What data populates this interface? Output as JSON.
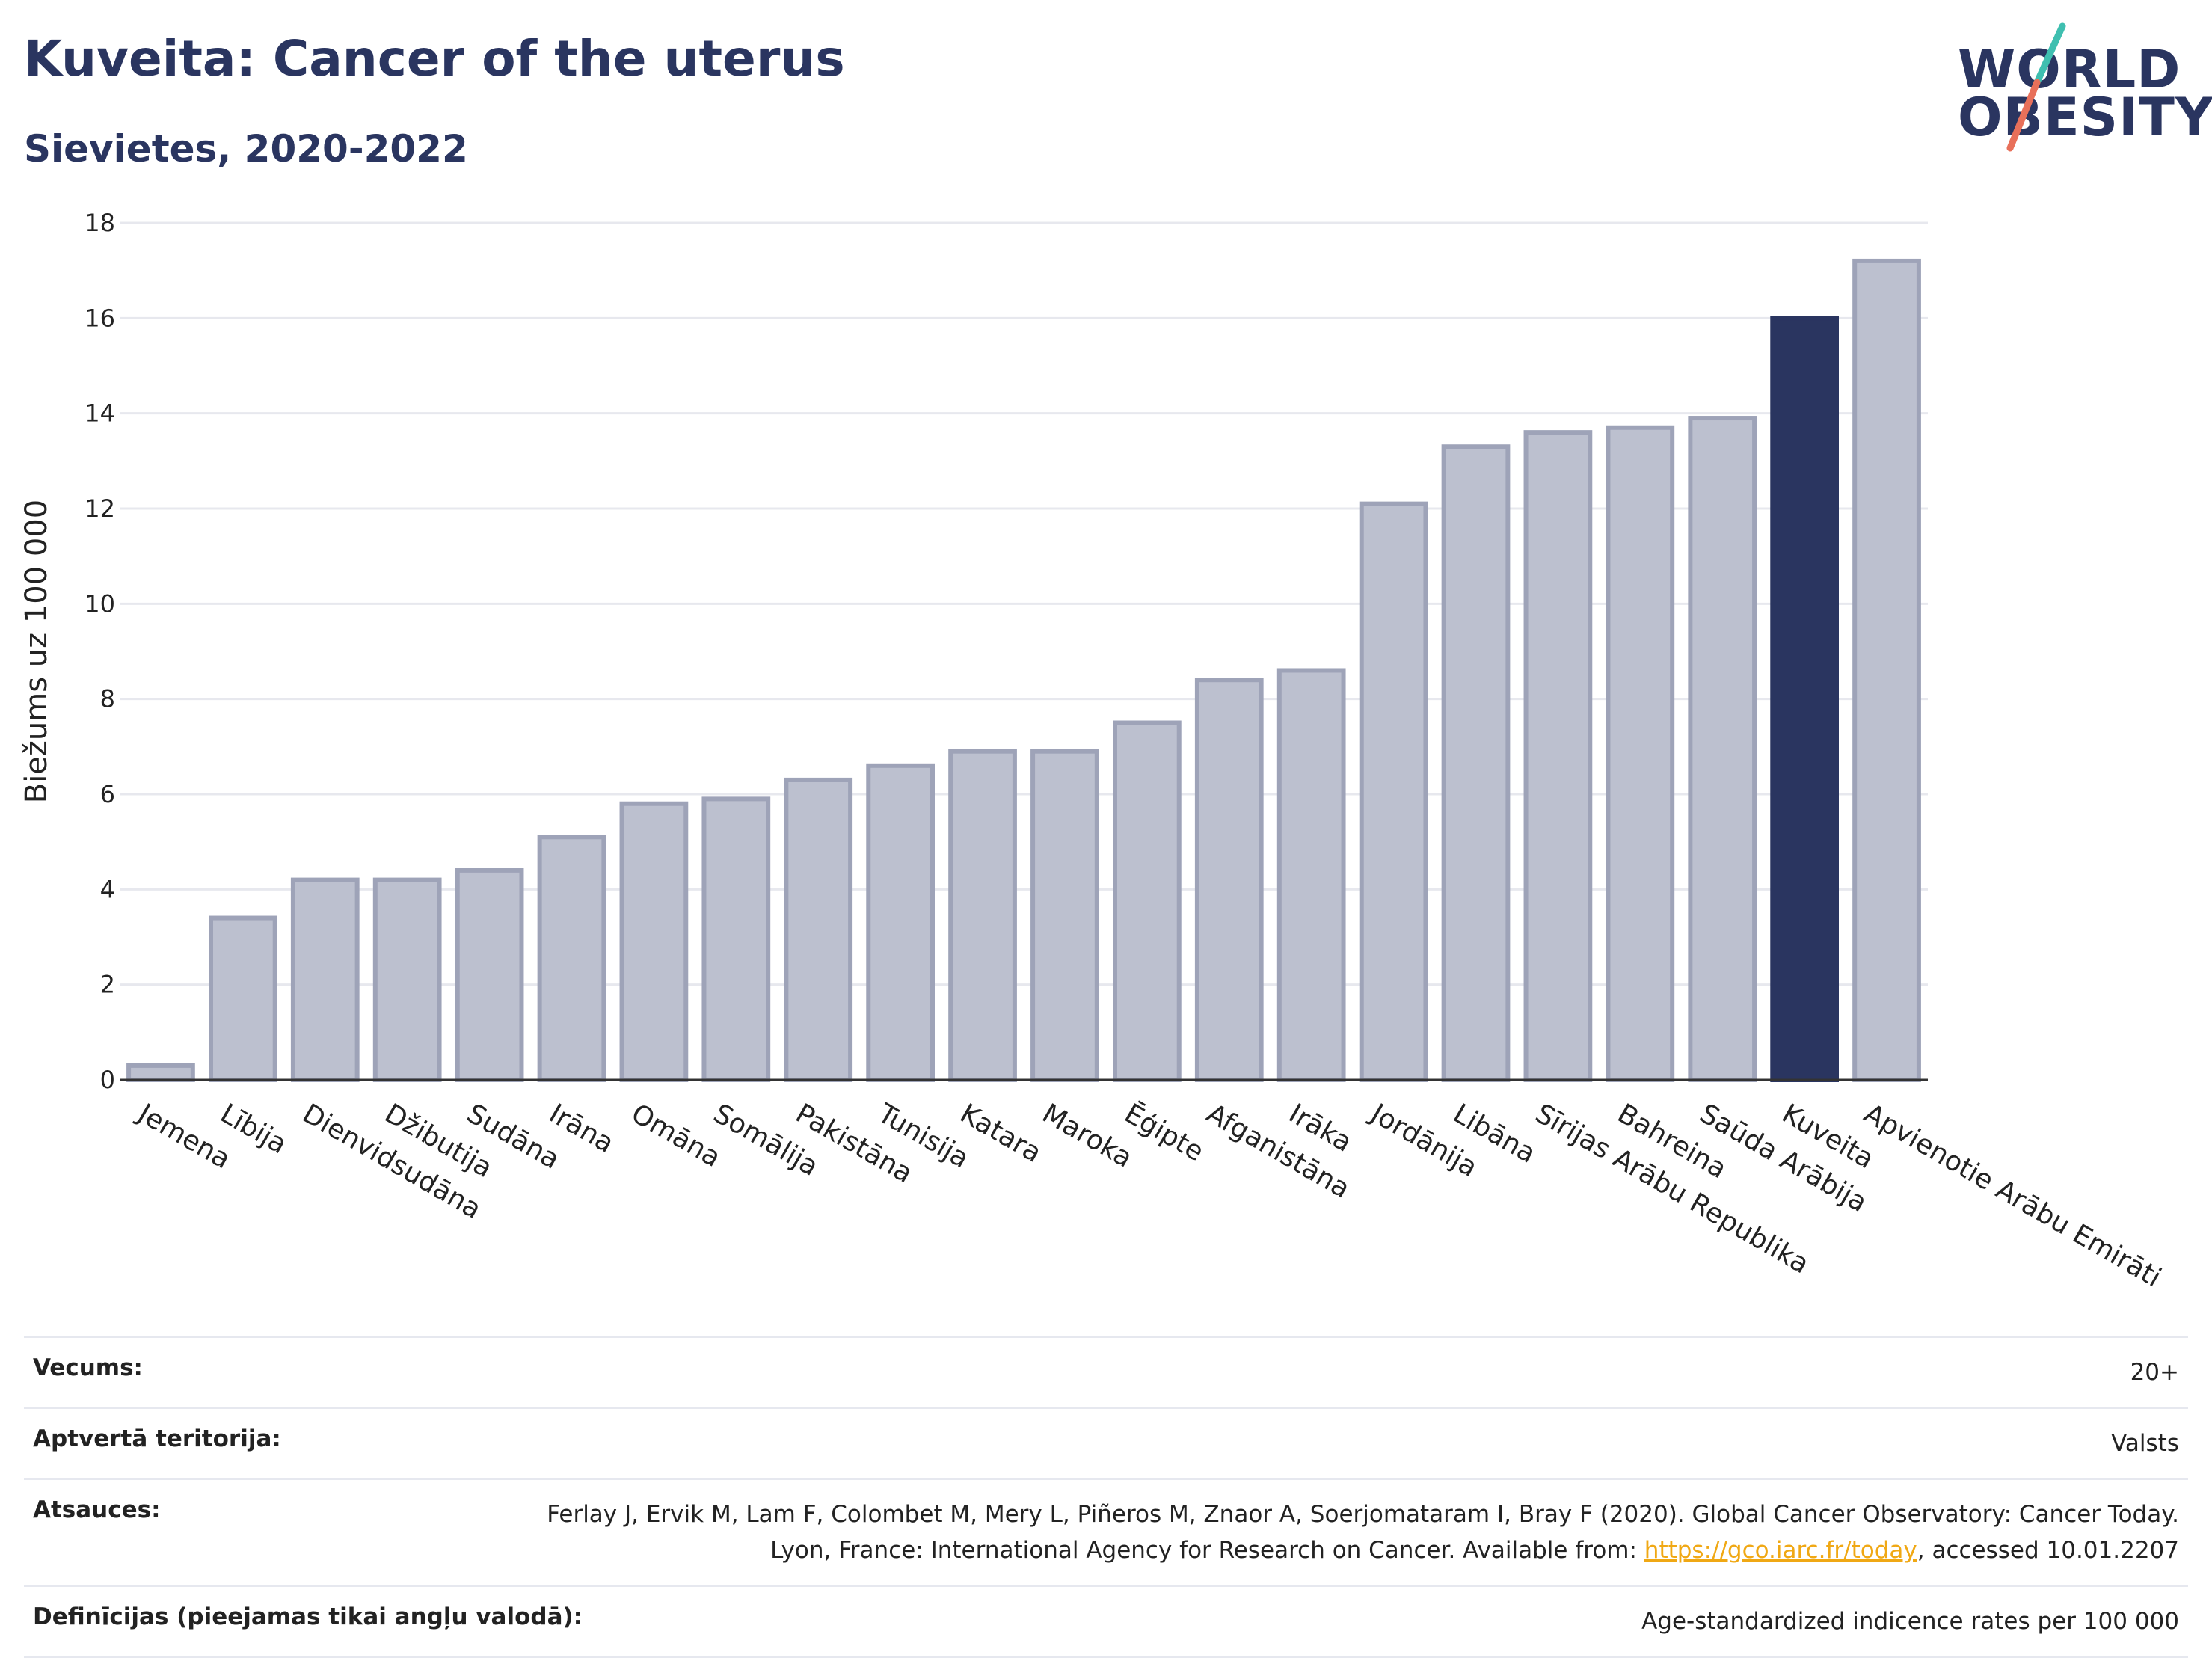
{
  "header": {
    "title": "Kuveita: Cancer of the uterus",
    "subtitle": "Sievietes, 2020-2022"
  },
  "logo": {
    "line1": "WORLD",
    "line2": "OBESITY",
    "accent_colors": [
      "#3fbfb0",
      "#e8705a"
    ]
  },
  "chart_data": {
    "type": "bar",
    "ylabel": "Biežums uz 100 000",
    "ylim": [
      0,
      18
    ],
    "yticks": [
      "0",
      "2",
      "4",
      "6",
      "8",
      "10",
      "12",
      "14",
      "16",
      "18"
    ],
    "grid": true,
    "categories": [
      "Jemena",
      "Lībija",
      "Dienvidsudāna",
      "Džibutija",
      "Sudāna",
      "Irāna",
      "Omāna",
      "Somālija",
      "Pakistāna",
      "Tunisija",
      "Katara",
      "Maroka",
      "Ēģipte",
      "Afganistāna",
      "Irāka",
      "Jordānija",
      "Libāna",
      "Sīrijas Arābu Republika",
      "Bahreina",
      "Saūda Arābija",
      "Kuveita",
      "Apvienotie Arābu Emirāti"
    ],
    "values": [
      0.3,
      3.4,
      4.2,
      4.2,
      4.4,
      5.1,
      5.8,
      5.9,
      6.3,
      6.6,
      6.9,
      6.9,
      7.5,
      8.4,
      8.6,
      12.1,
      13.3,
      13.6,
      13.7,
      13.9,
      16.0,
      17.2
    ],
    "highlight": "Kuveita",
    "colors": {
      "default": "#bcc0cf",
      "default_border": "#9ea3b8",
      "highlight": "#2a3560"
    }
  },
  "meta": [
    {
      "key": "Vecums:",
      "value": "20+"
    },
    {
      "key": "Aptvertā teritorija:",
      "value": "Valsts"
    },
    {
      "key": "Atsauces:",
      "value_pre": "Ferlay J, Ervik M, Lam F, Colombet M, Mery L, Piñeros M, Znaor A, Soerjomataram I, Bray F (2020). Global Cancer Observatory: Cancer Today. Lyon, France: International Agency for Research on Cancer. Available from: ",
      "link": "https://gco.iarc.fr/today",
      "value_post": ", accessed 10.01.2207"
    },
    {
      "key": "Definīcijas (pieejamas tikai angļu valodā):",
      "value": "Age-standardized indicence rates per 100 000"
    }
  ]
}
